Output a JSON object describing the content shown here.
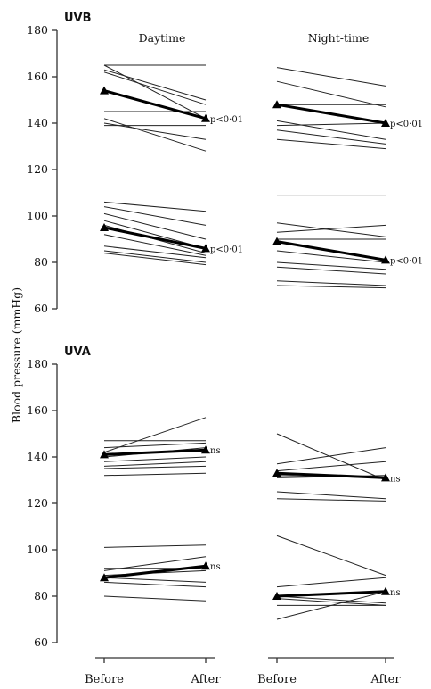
{
  "chart_data": {
    "type": "line",
    "ylabel": "Blood pressure (mmHg)",
    "x_categories": [
      "Before",
      "After"
    ],
    "y_ticks": [
      60,
      80,
      100,
      120,
      140,
      160,
      180
    ],
    "ylim": [
      60,
      180
    ],
    "colors": {
      "line": "#222222",
      "mean": "#000000",
      "axis": "#333333",
      "text": "#111111"
    },
    "columns": [
      "Daytime",
      "Night-time"
    ],
    "panels": [
      {
        "label": "UVB",
        "subplots": [
          {
            "column": "Daytime",
            "systolic": {
              "annotation": "p<0·01",
              "subjects": [
                [
                  165,
                  142
                ],
                [
                  165,
                  165
                ],
                [
                  163,
                  150
                ],
                [
                  162,
                  148
                ],
                [
                  145,
                  145
                ],
                [
                  142,
                  128
                ],
                [
                  140,
                  133
                ],
                [
                  139,
                  139
                ]
              ],
              "mean": [
                154,
                142
              ]
            },
            "diastolic": {
              "annotation": "p<0·01",
              "subjects": [
                [
                  106,
                  102
                ],
                [
                  104,
                  96
                ],
                [
                  101,
                  90
                ],
                [
                  98,
                  86
                ],
                [
                  96,
                  84
                ],
                [
                  92,
                  83
                ],
                [
                  87,
                  82
                ],
                [
                  85,
                  80
                ],
                [
                  84,
                  79
                ]
              ],
              "mean": [
                95,
                86
              ]
            }
          },
          {
            "column": "Night-time",
            "systolic": {
              "annotation": "p<0·01",
              "subjects": [
                [
                  164,
                  156
                ],
                [
                  158,
                  147
                ],
                [
                  148,
                  148
                ],
                [
                  141,
                  133
                ],
                [
                  139,
                  140
                ],
                [
                  137,
                  131
                ],
                [
                  133,
                  129
                ]
              ],
              "mean": [
                148,
                140
              ]
            },
            "diastolic": {
              "annotation": "p<0·01",
              "subjects": [
                [
                  109,
                  109
                ],
                [
                  97,
                  91
                ],
                [
                  93,
                  96
                ],
                [
                  90,
                  90
                ],
                [
                  85,
                  80
                ],
                [
                  80,
                  77
                ],
                [
                  78,
                  75
                ],
                [
                  72,
                  70
                ],
                [
                  70,
                  69
                ]
              ],
              "mean": [
                89,
                81
              ]
            }
          }
        ]
      },
      {
        "label": "UVA",
        "subplots": [
          {
            "column": "Daytime",
            "systolic": {
              "annotation": "ns",
              "subjects": [
                [
                  147,
                  147
                ],
                [
                  144,
                  146
                ],
                [
                  142,
                  157
                ],
                [
                  140,
                  144
                ],
                [
                  138,
                  140
                ],
                [
                  136,
                  138
                ],
                [
                  135,
                  136
                ],
                [
                  132,
                  133
                ]
              ],
              "mean": [
                141,
                143
              ]
            },
            "diastolic": {
              "annotation": "ns",
              "subjects": [
                [
                  101,
                  102
                ],
                [
                  92,
                  92
                ],
                [
                  91,
                  97
                ],
                [
                  89,
                  91
                ],
                [
                  88,
                  86
                ],
                [
                  86,
                  84
                ],
                [
                  80,
                  78
                ]
              ],
              "mean": [
                88,
                93
              ]
            }
          },
          {
            "column": "Night-time",
            "systolic": {
              "annotation": "ns",
              "subjects": [
                [
                  150,
                  130
                ],
                [
                  137,
                  144
                ],
                [
                  134,
                  138
                ],
                [
                  132,
                  131
                ],
                [
                  131,
                  132
                ],
                [
                  125,
                  122
                ],
                [
                  122,
                  121
                ]
              ],
              "mean": [
                133,
                131
              ]
            },
            "diastolic": {
              "annotation": "ns",
              "subjects": [
                [
                  106,
                  89
                ],
                [
                  84,
                  88
                ],
                [
                  80,
                  77
                ],
                [
                  79,
                  76
                ],
                [
                  70,
                  82
                ],
                [
                  76,
                  76
                ]
              ],
              "mean": [
                80,
                82
              ]
            }
          }
        ]
      }
    ]
  }
}
